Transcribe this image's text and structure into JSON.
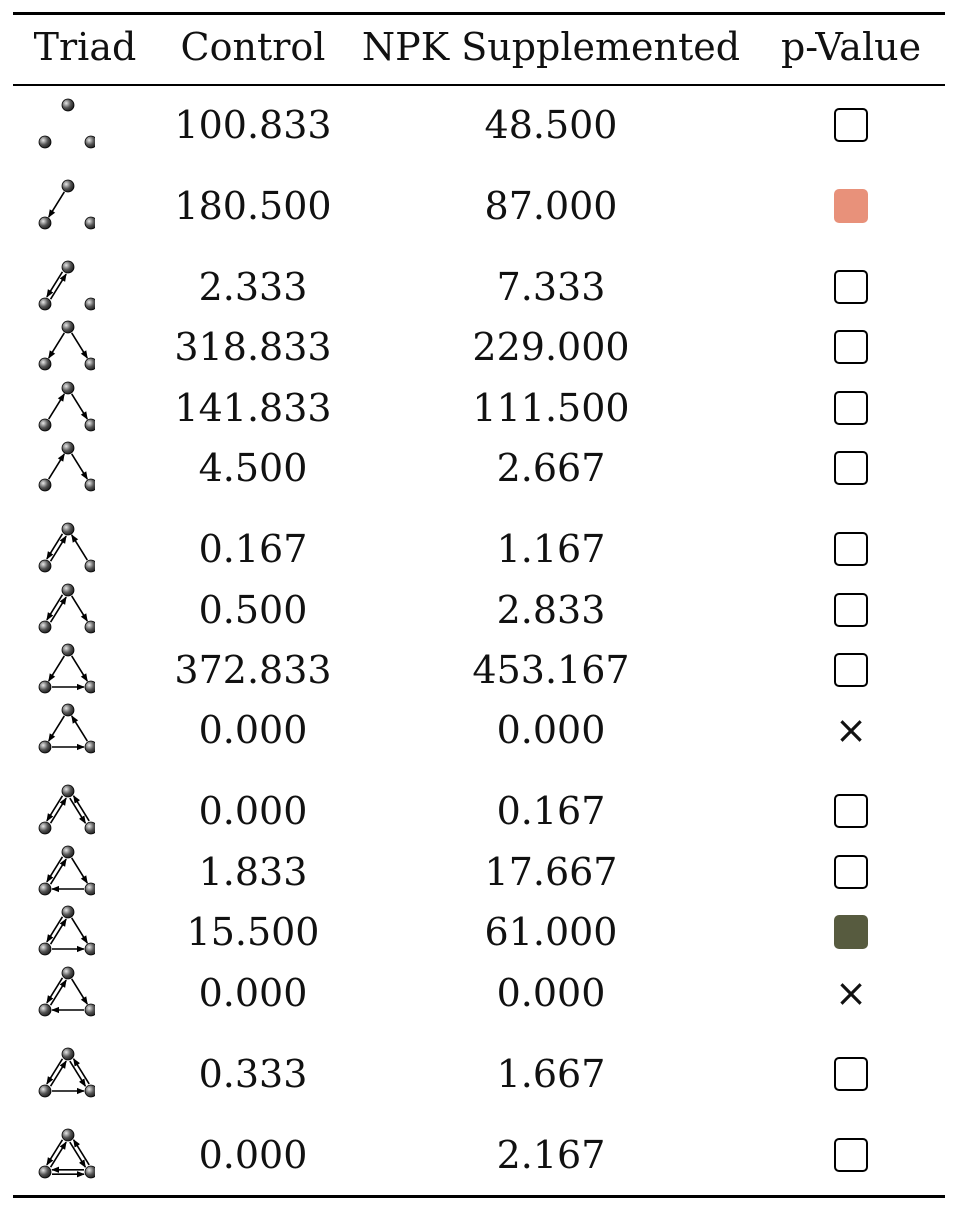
{
  "headers": {
    "triad": "Triad",
    "control": "Control",
    "npk": "NPK Supplemented",
    "pvalue": "p-Value"
  },
  "colors": {
    "salmon": "#e8917a",
    "olive": "#575b3f",
    "node": "#555555"
  },
  "rows": [
    {
      "control": "100.833",
      "npk": "48.500",
      "p": "empty",
      "triad": "003"
    },
    {
      "control": "180.500",
      "npk": "87.000",
      "p": "salmon",
      "triad": "012"
    },
    {
      "control": "2.333",
      "npk": "7.333",
      "p": "empty",
      "triad": "102"
    },
    {
      "control": "318.833",
      "npk": "229.000",
      "p": "empty",
      "triad": "021D"
    },
    {
      "control": "141.833",
      "npk": "111.500",
      "p": "empty",
      "triad": "021U"
    },
    {
      "control": "4.500",
      "npk": "2.667",
      "p": "empty",
      "triad": "021C"
    },
    {
      "control": "0.167",
      "npk": "1.167",
      "p": "empty",
      "triad": "111D"
    },
    {
      "control": "0.500",
      "npk": "2.833",
      "p": "empty",
      "triad": "111U"
    },
    {
      "control": "372.833",
      "npk": "453.167",
      "p": "empty",
      "triad": "030T"
    },
    {
      "control": "0.000",
      "npk": "0.000",
      "p": "cross",
      "triad": "030C"
    },
    {
      "control": "0.000",
      "npk": "0.167",
      "p": "empty",
      "triad": "201"
    },
    {
      "control": "1.833",
      "npk": "17.667",
      "p": "empty",
      "triad": "120D"
    },
    {
      "control": "15.500",
      "npk": "61.000",
      "p": "olive",
      "triad": "120U"
    },
    {
      "control": "0.000",
      "npk": "0.000",
      "p": "cross",
      "triad": "120C"
    },
    {
      "control": "0.333",
      "npk": "1.667",
      "p": "empty",
      "triad": "210"
    },
    {
      "control": "0.000",
      "npk": "2.167",
      "p": "empty",
      "triad": "300"
    }
  ],
  "cross_glyph": "×"
}
